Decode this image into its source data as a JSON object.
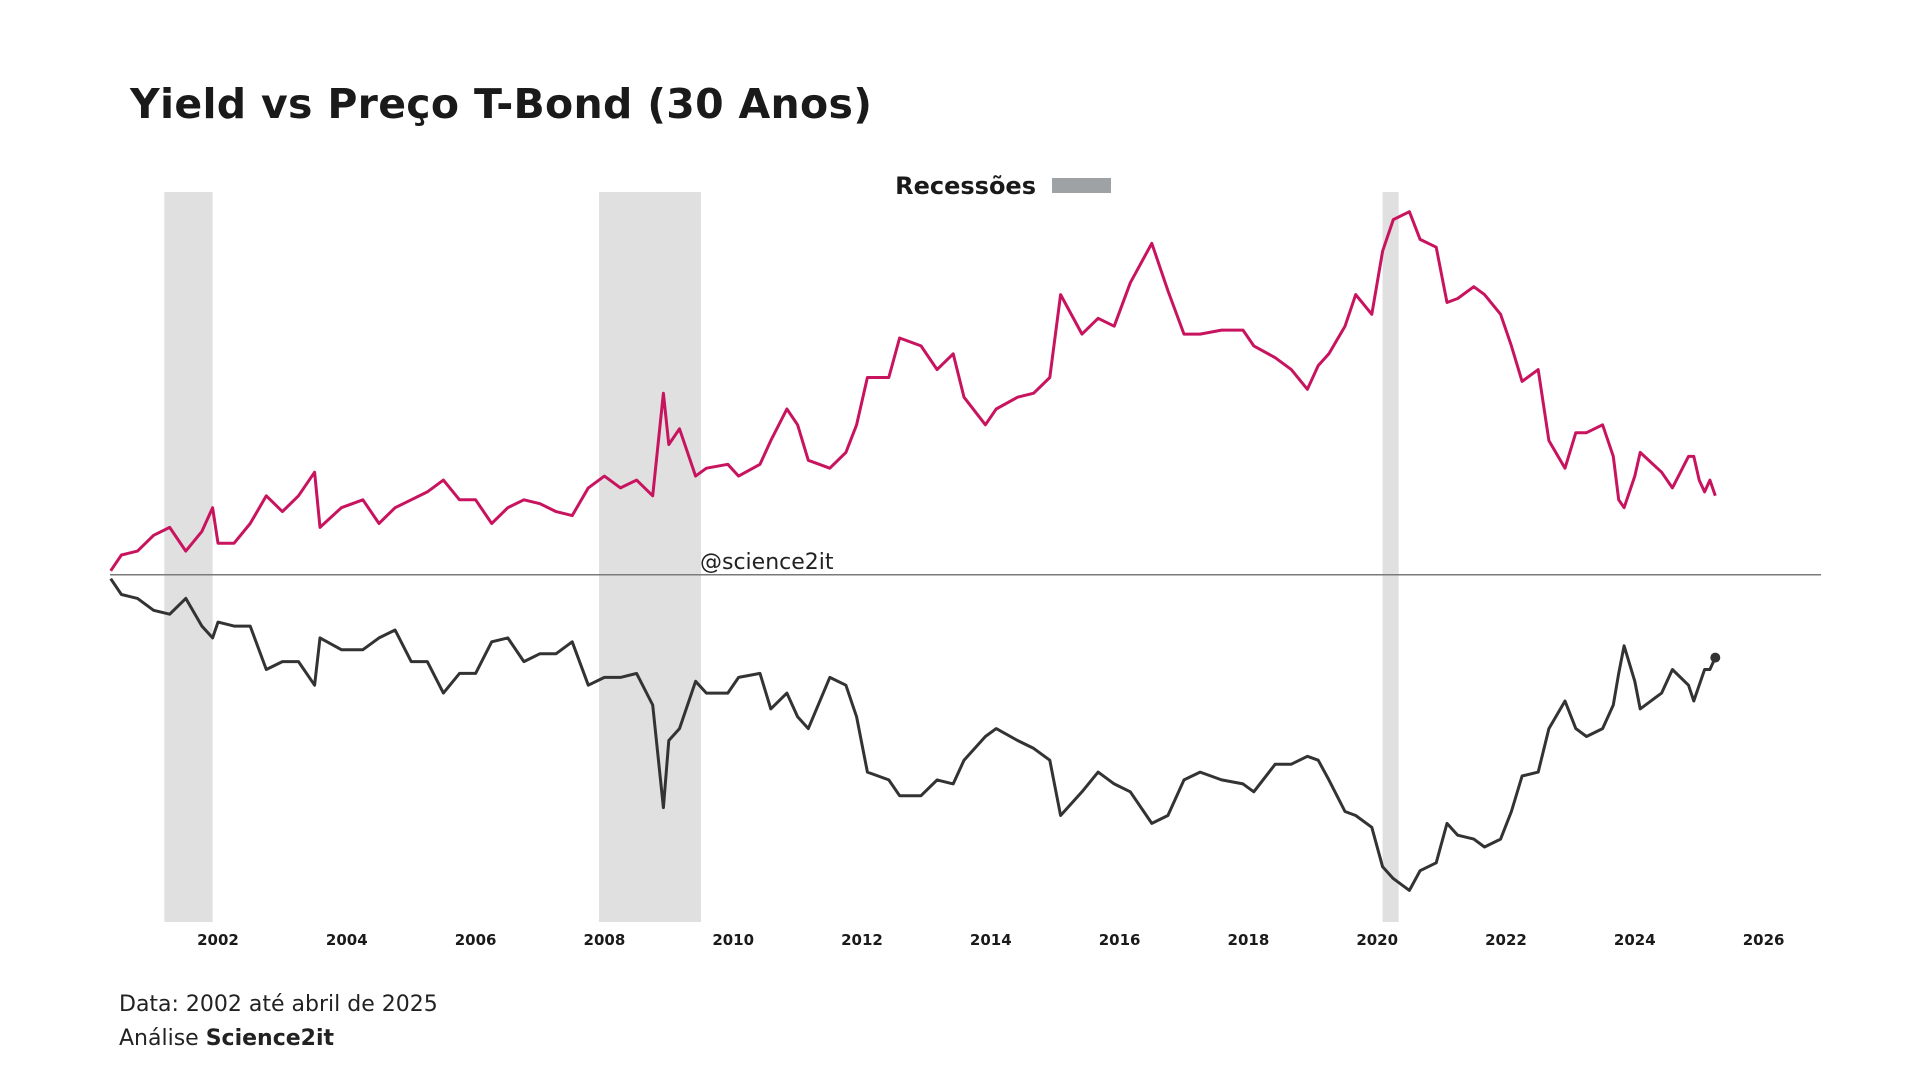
{
  "title": "Yield vs Preço T-Bond (30 Anos)",
  "legend": {
    "label": "Recessões",
    "swatch_color": "#9ea2a5",
    "placement": "top-center"
  },
  "watermark": "@science2it",
  "footer": {
    "line1": "Data: 2002 até abril de 2025",
    "line2_prefix": "Análise",
    "line2_bold": "Science2it"
  },
  "chart_data": {
    "type": "line",
    "title": "Yield vs Preço T-Bond (30 Anos)",
    "xlabel": "",
    "ylabel": "",
    "x_ticks": [
      "2002",
      "2004",
      "2006",
      "2008",
      "2010",
      "2012",
      "2014",
      "2016",
      "2018",
      "2020",
      "2022",
      "2024",
      "2026"
    ],
    "xlim": [
      2000,
      2027
    ],
    "ylim": [
      -88,
      97
    ],
    "y_axis_visible": false,
    "grid": false,
    "zero_line": true,
    "recessions": [
      [
        "2001-03",
        "2001-11"
      ],
      [
        "2007-12",
        "2009-06"
      ],
      [
        "2020-02",
        "2020-04"
      ]
    ],
    "recession_color": "#e0e0e0",
    "x": [
      "2000-05",
      "2000-07",
      "2000-10",
      "2001-01",
      "2001-04",
      "2001-07",
      "2001-10",
      "2001-12",
      "2002-01",
      "2002-04",
      "2002-07",
      "2002-10",
      "2003-01",
      "2003-04",
      "2003-07",
      "2003-08",
      "2003-12",
      "2004-04",
      "2004-07",
      "2004-10",
      "2005-01",
      "2005-04",
      "2005-07",
      "2005-10",
      "2006-01",
      "2006-04",
      "2006-07",
      "2006-10",
      "2007-01",
      "2007-04",
      "2007-07",
      "2007-10",
      "2008-01",
      "2008-04",
      "2008-07",
      "2008-10",
      "2008-12",
      "2009-01",
      "2009-03",
      "2009-06",
      "2009-08",
      "2009-12",
      "2010-02",
      "2010-06",
      "2010-08",
      "2010-11",
      "2011-01",
      "2011-03",
      "2011-07",
      "2011-10",
      "2011-12",
      "2012-02",
      "2012-06",
      "2012-08",
      "2012-12",
      "2013-03",
      "2013-06",
      "2013-08",
      "2013-12",
      "2014-02",
      "2014-06",
      "2014-09",
      "2014-12",
      "2015-02",
      "2015-06",
      "2015-09",
      "2015-12",
      "2016-03",
      "2016-07",
      "2016-10",
      "2017-01",
      "2017-04",
      "2017-08",
      "2017-12",
      "2018-02",
      "2018-06",
      "2018-09",
      "2018-12",
      "2019-02",
      "2019-04",
      "2019-07",
      "2019-09",
      "2019-12",
      "2020-02",
      "2020-04",
      "2020-07",
      "2020-09",
      "2020-12",
      "2021-02",
      "2021-04",
      "2021-07",
      "2021-09",
      "2021-12",
      "2022-02",
      "2022-04",
      "2022-07",
      "2022-09",
      "2022-12",
      "2023-02",
      "2023-04",
      "2023-07",
      "2023-09",
      "2023-10",
      "2023-11",
      "2024-01",
      "2024-02",
      "2024-06",
      "2024-08",
      "2024-11",
      "2024-12",
      "2025-01",
      "2025-02",
      "2025-03",
      "2025-04"
    ],
    "series": [
      {
        "color": "#c8145f",
        "values": [
          1,
          5,
          6,
          10,
          12,
          6,
          11,
          17,
          8,
          8,
          13,
          20,
          16,
          20,
          26,
          12,
          17,
          19,
          13,
          17,
          19,
          21,
          24,
          19,
          19,
          13,
          17,
          19,
          18,
          16,
          15,
          22,
          25,
          22,
          24,
          20,
          46,
          33,
          37,
          25,
          27,
          28,
          25,
          28,
          34,
          42,
          38,
          29,
          27,
          31,
          38,
          50,
          50,
          60,
          58,
          52,
          56,
          45,
          38,
          42,
          45,
          46,
          50,
          71,
          61,
          65,
          63,
          74,
          84,
          72,
          61,
          61,
          62,
          62,
          58,
          55,
          52,
          47,
          53,
          56,
          63,
          71,
          66,
          82,
          90,
          92,
          85,
          83,
          69,
          70,
          73,
          71,
          66,
          58,
          49,
          52,
          34,
          27,
          36,
          36,
          38,
          30,
          19,
          17,
          25,
          31,
          26,
          22,
          30,
          30,
          24,
          21,
          24,
          20
        ]
      },
      {
        "color": "#333333",
        "end_marker": true,
        "values": [
          -1,
          -5,
          -6,
          -9,
          -10,
          -6,
          -13,
          -16,
          -12,
          -13,
          -13,
          -24,
          -22,
          -22,
          -28,
          -16,
          -19,
          -19,
          -16,
          -14,
          -22,
          -22,
          -30,
          -25,
          -25,
          -17,
          -16,
          -22,
          -20,
          -20,
          -17,
          -28,
          -26,
          -26,
          -25,
          -33,
          -59,
          -42,
          -39,
          -27,
          -30,
          -30,
          -26,
          -25,
          -34,
          -30,
          -36,
          -39,
          -26,
          -28,
          -36,
          -50,
          -52,
          -56,
          -56,
          -52,
          -53,
          -47,
          -41,
          -39,
          -42,
          -44,
          -47,
          -61,
          -55,
          -50,
          -53,
          -55,
          -63,
          -61,
          -52,
          -50,
          -52,
          -53,
          -55,
          -48,
          -48,
          -46,
          -47,
          -52,
          -60,
          -61,
          -64,
          -74,
          -77,
          -80,
          -75,
          -73,
          -63,
          -66,
          -67,
          -69,
          -67,
          -60,
          -51,
          -50,
          -39,
          -32,
          -39,
          -41,
          -39,
          -33,
          -25,
          -18,
          -27,
          -34,
          -30,
          -24,
          -28,
          -32,
          -28,
          -24,
          -24,
          -21
        ]
      }
    ]
  }
}
